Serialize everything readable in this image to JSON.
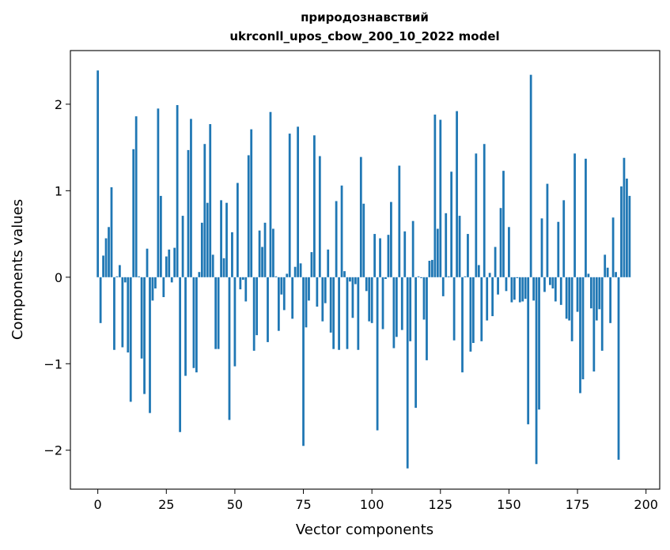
{
  "chart_data": {
    "type": "bar",
    "title": "природознавствий",
    "subtitle": "ukrconll_upos_cbow_200_10_2022 model",
    "xlabel": "Vector components",
    "ylabel": "Components values",
    "xlim": [
      -10,
      205
    ],
    "ylim": [
      -2.45,
      2.62
    ],
    "xticks": [
      0,
      25,
      50,
      75,
      100,
      125,
      150,
      175,
      200
    ],
    "yticks": [
      -2,
      -1,
      0,
      1,
      2
    ],
    "xtick_labels": [
      "0",
      "25",
      "50",
      "75",
      "100",
      "125",
      "150",
      "175",
      "200"
    ],
    "ytick_labels": [
      "−2",
      "−1",
      "0",
      "1",
      "2"
    ],
    "grid": false,
    "bar_color": "#1f77b4",
    "values": [
      2.39,
      -0.53,
      0.25,
      0.45,
      0.58,
      1.04,
      -0.84,
      0.01,
      0.14,
      -0.81,
      -0.06,
      -0.87,
      -1.44,
      1.48,
      1.86,
      0.01,
      -0.94,
      -1.35,
      0.33,
      -1.57,
      -0.27,
      -0.13,
      1.95,
      0.94,
      -0.23,
      0.24,
      0.32,
      -0.06,
      0.34,
      1.99,
      -1.79,
      0.71,
      -1.14,
      1.47,
      1.83,
      -1.05,
      -1.1,
      0.06,
      0.63,
      1.54,
      0.86,
      1.77,
      0.26,
      -0.83,
      -0.83,
      0.89,
      0.22,
      0.86,
      -1.65,
      0.52,
      -1.03,
      1.09,
      -0.14,
      -0.03,
      -0.28,
      1.41,
      1.71,
      -0.85,
      -0.67,
      0.54,
      0.35,
      0.63,
      -0.75,
      1.91,
      0.56,
      0.01,
      -0.62,
      -0.2,
      -0.38,
      0.04,
      1.66,
      -0.48,
      0.12,
      1.74,
      0.16,
      -1.95,
      -0.58,
      -0.27,
      0.29,
      1.64,
      -0.34,
      1.4,
      -0.51,
      -0.3,
      0.32,
      -0.64,
      -0.83,
      0.88,
      -0.84,
      1.06,
      0.07,
      -0.83,
      -0.05,
      -0.47,
      -0.08,
      -0.84,
      1.39,
      0.85,
      -0.16,
      -0.51,
      -0.53,
      0.5,
      -1.77,
      0.45,
      -0.6,
      -0.02,
      0.49,
      0.87,
      -0.82,
      -0.69,
      1.29,
      -0.61,
      0.53,
      -2.21,
      -0.74,
      0.65,
      -1.51,
      0.01,
      -0.01,
      -0.49,
      -0.96,
      0.19,
      0.2,
      1.88,
      0.56,
      1.82,
      -0.22,
      0.74,
      0.01,
      1.22,
      -0.73,
      1.92,
      0.71,
      -1.1,
      0.01,
      0.5,
      -0.86,
      -0.76,
      1.43,
      0.14,
      -0.74,
      1.54,
      -0.5,
      0.05,
      -0.45,
      0.35,
      -0.2,
      0.8,
      1.23,
      -0.16,
      0.58,
      -0.29,
      -0.26,
      -0.01,
      -0.29,
      -0.28,
      -0.25,
      -1.7,
      2.34,
      -0.27,
      -2.16,
      -1.53,
      0.68,
      -0.17,
      1.08,
      -0.09,
      -0.13,
      -0.28,
      0.64,
      -0.32,
      0.89,
      -0.48,
      -0.5,
      -0.74,
      1.43,
      -0.4,
      -1.34,
      -1.18,
      1.37,
      0.04,
      -0.36,
      -1.09,
      -0.5,
      -0.37,
      -0.85,
      0.26,
      0.11,
      -0.53,
      0.69,
      0.06,
      -2.11,
      1.05,
      1.38,
      1.14,
      0.94
    ]
  }
}
